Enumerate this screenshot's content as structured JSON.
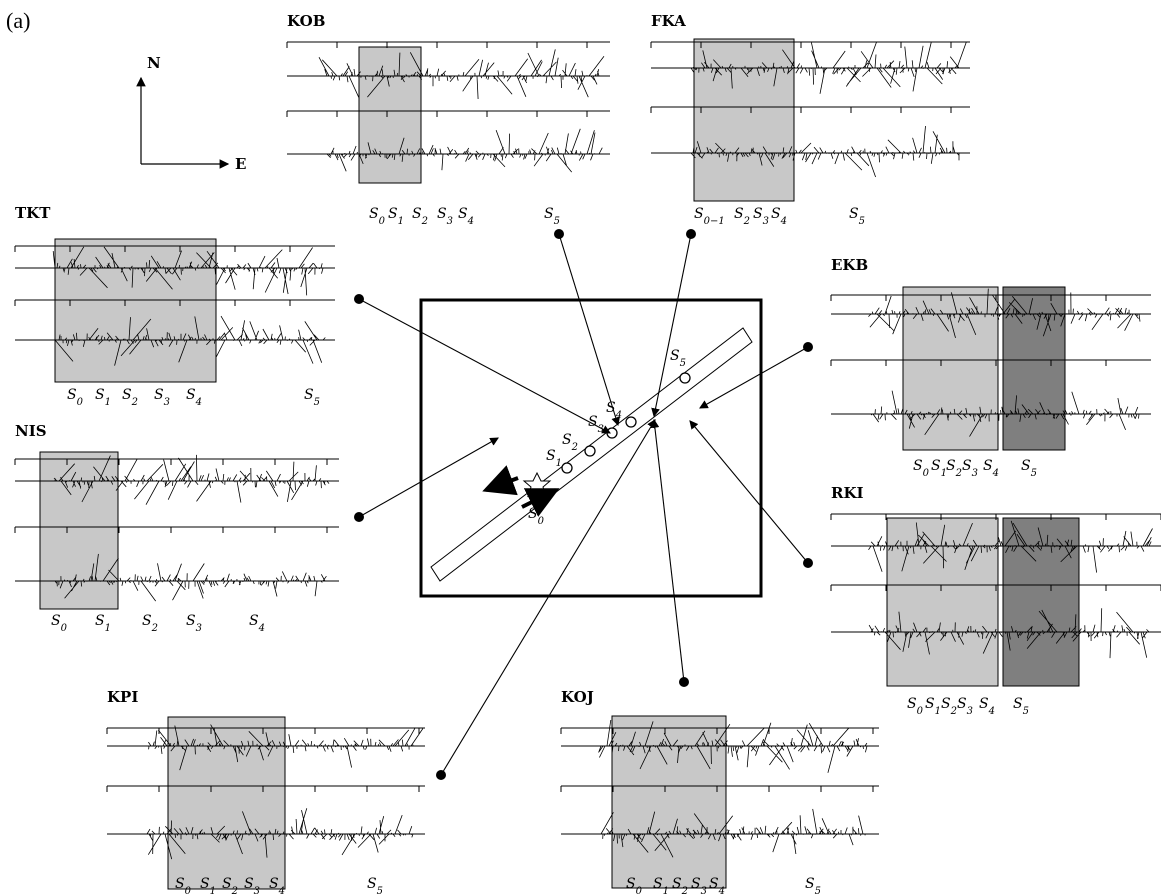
{
  "figure_label": "(a)",
  "compass": {
    "north": "N",
    "east": "E"
  },
  "colors": {
    "ink": "#000000",
    "light_box": "#c8c8c8",
    "dark_box": "#7f7f7f",
    "pane_fill": "#bdbdbd"
  },
  "map": {
    "rupture_labels": [
      "S0",
      "S1",
      "S2",
      "S3",
      "S4",
      "S5"
    ],
    "epicenter_icon": "star-icon"
  },
  "stations": [
    {
      "id": "KOB",
      "name": "KOB",
      "segments": [
        "S0",
        "S1",
        "S2",
        "S3",
        "S4",
        "S5"
      ]
    },
    {
      "id": "FKA",
      "name": "FKA",
      "segments": [
        "S0−1",
        "S2",
        "S3",
        "S4",
        "S5"
      ]
    },
    {
      "id": "TKT",
      "name": "TKT",
      "segments": [
        "S0",
        "S1",
        "S2",
        "S3",
        "S4",
        "S5"
      ]
    },
    {
      "id": "EKB",
      "name": "EKB",
      "segments": [
        "S0",
        "S1",
        "S2",
        "S3",
        "S4",
        "S5"
      ]
    },
    {
      "id": "NIS",
      "name": "NIS",
      "segments": [
        "S0",
        "S1",
        "S2",
        "S3",
        "S4"
      ]
    },
    {
      "id": "RKI",
      "name": "RKI",
      "segments": [
        "S0",
        "S1",
        "S2",
        "S3",
        "S4",
        "S5"
      ]
    },
    {
      "id": "KPI",
      "name": "KPI",
      "segments": [
        "S0",
        "S1",
        "S2",
        "S3",
        "S4",
        "S5"
      ]
    },
    {
      "id": "KOJ",
      "name": "KOJ",
      "segments": [
        "S0",
        "S1",
        "S2",
        "S3",
        "S4",
        "S5"
      ]
    }
  ]
}
